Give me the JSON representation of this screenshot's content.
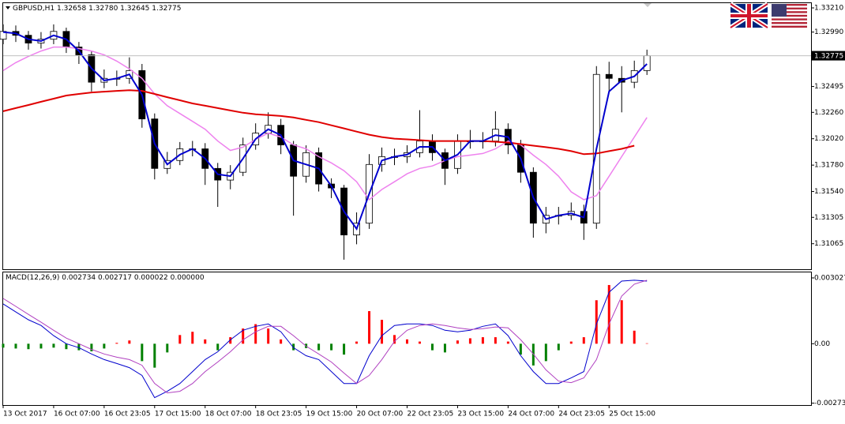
{
  "chart_data": [
    {
      "type": "candlestick",
      "title": "GBPUSD,H1  1.32658 1.32780 1.32645 1.32775",
      "x": [
        0,
        4,
        8,
        12,
        16,
        20,
        24,
        28,
        32,
        36,
        40,
        44,
        48,
        52,
        56,
        60,
        64,
        68,
        72,
        76,
        80,
        84,
        88,
        92,
        96,
        100,
        104,
        108,
        112,
        116,
        120,
        124,
        128,
        132,
        136,
        140,
        144,
        148,
        152,
        156,
        160,
        164,
        168,
        172,
        176,
        180,
        184,
        188,
        192,
        196,
        200,
        204
      ],
      "open": [
        1.32925,
        1.32996,
        1.32961,
        1.3289,
        1.32925,
        1.32996,
        1.32854,
        1.32783,
        1.32534,
        1.32569,
        1.32569,
        1.3264,
        1.322,
        1.3175,
        1.31822,
        1.31928,
        1.31928,
        1.3175,
        1.31644,
        1.31715,
        1.31964,
        1.32071,
        1.32142,
        1.31964,
        1.31679,
        1.31893,
        1.31608,
        1.31572,
        1.31145,
        1.31252,
        1.31786,
        1.31857,
        1.31857,
        1.31893,
        1.31999,
        1.31893,
        1.3175,
        1.31999,
        1.31999,
        1.31999,
        1.32106,
        1.31964,
        1.31715,
        1.31252,
        1.31323,
        1.31323,
        1.31359,
        1.31252,
        1.32605,
        1.32569,
        1.32534,
        1.3264
      ],
      "high": [
        1.3306,
        1.3305,
        1.33,
        1.3299,
        1.3306,
        1.3303,
        1.329,
        1.3282,
        1.3265,
        1.3264,
        1.3276,
        1.327,
        1.3225,
        1.319,
        1.3199,
        1.32,
        1.3198,
        1.318,
        1.3178,
        1.3203,
        1.3216,
        1.3226,
        1.322,
        1.32,
        1.3196,
        1.3194,
        1.3166,
        1.316,
        1.3135,
        1.3188,
        1.3194,
        1.3193,
        1.3196,
        1.3228,
        1.3206,
        1.3193,
        1.3206,
        1.321,
        1.3208,
        1.3227,
        1.3216,
        1.3201,
        1.3176,
        1.314,
        1.314,
        1.3144,
        1.3142,
        1.3268,
        1.3272,
        1.3268,
        1.3273,
        1.3283
      ],
      "low": [
        1.3288,
        1.329,
        1.3283,
        1.3284,
        1.3288,
        1.328,
        1.327,
        1.3245,
        1.3248,
        1.325,
        1.3252,
        1.3212,
        1.3165,
        1.317,
        1.3178,
        1.3186,
        1.316,
        1.314,
        1.3156,
        1.3168,
        1.3192,
        1.3202,
        1.3188,
        1.3132,
        1.3162,
        1.3154,
        1.3148,
        1.3092,
        1.3106,
        1.312,
        1.3172,
        1.3178,
        1.318,
        1.3185,
        1.3182,
        1.316,
        1.317,
        1.3193,
        1.3193,
        1.3195,
        1.3188,
        1.3162,
        1.3112,
        1.3116,
        1.3124,
        1.3128,
        1.311,
        1.312,
        1.3244,
        1.3226,
        1.3248,
        1.326
      ],
      "close": [
        1.32996,
        1.32961,
        1.3289,
        1.32925,
        1.32996,
        1.32854,
        1.32783,
        1.32534,
        1.32569,
        1.32569,
        1.3264,
        1.322,
        1.3175,
        1.31822,
        1.31928,
        1.31928,
        1.3175,
        1.31644,
        1.31715,
        1.31964,
        1.32071,
        1.32142,
        1.31964,
        1.31679,
        1.31893,
        1.31608,
        1.31572,
        1.31145,
        1.31252,
        1.31786,
        1.31857,
        1.31857,
        1.31893,
        1.31999,
        1.31893,
        1.3175,
        1.31999,
        1.31999,
        1.31999,
        1.32106,
        1.31964,
        1.31715,
        1.31252,
        1.31323,
        1.31323,
        1.31359,
        1.31252,
        1.32605,
        1.32569,
        1.32534,
        1.3264,
        1.32775
      ],
      "up_color": "#ffffff",
      "down_color": "#000000",
      "series": [
        {
          "color": "#ee82ee",
          "width": 1.5,
          "values": [
            1.3264,
            1.32712,
            1.32769,
            1.32818,
            1.32854,
            1.32854,
            1.3284,
            1.32818,
            1.32783,
            1.32726,
            1.32655,
            1.32569,
            1.32427,
            1.3232,
            1.32249,
            1.32178,
            1.32106,
            1.31999,
            1.31914,
            1.31943,
            1.32014,
            1.32071,
            1.32035,
            1.31964,
            1.31928,
            1.31857,
            1.318,
            1.31729,
            1.31629,
            1.31466,
            1.31558,
            1.31629,
            1.31701,
            1.3175,
            1.31772,
            1.31822,
            1.31857,
            1.31871,
            1.31886,
            1.31928,
            1.31999,
            1.31964,
            1.31871,
            1.31786,
            1.31679,
            1.31537,
            1.31466,
            1.31502,
            1.31679,
            1.31857,
            1.32035,
            1.32213
          ]
        },
        {
          "color": "#e00000",
          "width": 2,
          "values": [
            1.3227,
            1.32299,
            1.32327,
            1.32356,
            1.32384,
            1.32413,
            1.32427,
            1.32441,
            1.32448,
            1.32455,
            1.32462,
            1.32455,
            1.32427,
            1.32398,
            1.3237,
            1.32341,
            1.3232,
            1.32299,
            1.32277,
            1.32256,
            1.32242,
            1.32235,
            1.32227,
            1.32213,
            1.32192,
            1.32171,
            1.32142,
            1.32114,
            1.32085,
            1.32057,
            1.32035,
            1.32021,
            1.32014,
            1.32007,
            1.31999,
            1.31999,
            1.31999,
            1.31999,
            1.31999,
            1.31993,
            1.31985,
            1.31971,
            1.31957,
            1.31943,
            1.31928,
            1.31907,
            1.31879,
            1.31886,
            1.31907,
            1.31928,
            1.31957,
            null
          ]
        },
        {
          "color": "#0000cd",
          "width": 2,
          "values": [
            1.3299,
            1.32978,
            1.32925,
            1.32908,
            1.3296,
            1.32925,
            1.32818,
            1.3266,
            1.3255,
            1.32569,
            1.32605,
            1.3242,
            1.31975,
            1.31786,
            1.31875,
            1.31928,
            1.3184,
            1.31697,
            1.3168,
            1.3184,
            1.32018,
            1.32106,
            1.32053,
            1.31822,
            1.31786,
            1.3175,
            1.3159,
            1.31358,
            1.312,
            1.31519,
            1.31822,
            1.31857,
            1.31875,
            1.31946,
            1.31946,
            1.31822,
            1.31875,
            1.31999,
            1.31999,
            1.32053,
            1.32035,
            1.3184,
            1.31484,
            1.31288,
            1.31323,
            1.31341,
            1.31305,
            1.31929,
            1.3245,
            1.3255,
            1.32587,
            1.327
          ]
        }
      ],
      "last_price": 1.32775,
      "xlim": [
        0,
        256
      ],
      "ylim": [
        1.30833,
        1.33253
      ],
      "yticks": [
        {
          "value": 1.3321,
          "label": "1.33210"
        },
        {
          "value": 1.3299,
          "label": "1.32990"
        },
        1.32495,
        {
          "value": 1.3226,
          "label": "1.32260"
        },
        {
          "value": 1.3202,
          "label": "1.32020"
        },
        {
          "value": 1.3178,
          "label": "1.31780"
        },
        {
          "value": 1.3154,
          "label": "1.31540"
        },
        1.31305,
        1.31065
      ]
    },
    {
      "type": "macd",
      "title": "MACD(12,26,9) 0.002734 0.002717 0.000022 0.000000",
      "x": [
        0,
        4,
        8,
        12,
        16,
        20,
        24,
        28,
        32,
        36,
        40,
        44,
        48,
        52,
        56,
        60,
        64,
        68,
        72,
        76,
        80,
        84,
        88,
        92,
        96,
        100,
        104,
        108,
        112,
        116,
        120,
        124,
        128,
        132,
        136,
        140,
        144,
        148,
        152,
        156,
        160,
        164,
        168,
        172,
        176,
        180,
        184,
        188,
        192,
        196,
        200,
        204
      ],
      "histogram": [
        -0.00018,
        -0.00022,
        -0.00025,
        -0.00022,
        -0.00018,
        -0.00025,
        -0.0003,
        -0.00035,
        -0.00022,
        4e-05,
        0.00015,
        -0.0008,
        -0.0011,
        -0.0004,
        0.0004,
        0.00055,
        0.0002,
        -0.0003,
        0.0003,
        0.0007,
        0.0009,
        0.0007,
        0.0002,
        -0.0003,
        -0.0002,
        -0.0003,
        -0.0003,
        -0.0005,
        0.0001,
        0.0015,
        0.0011,
        0.0004,
        0.0002,
        0.0001,
        -0.0003,
        -0.0004,
        0.00015,
        0.00025,
        0.0003,
        0.0003,
        0.0001,
        -0.0005,
        -0.001,
        -0.0008,
        -0.0003,
        0.0001,
        0.0003,
        0.002,
        0.0027,
        0.002,
        0.0006,
        2e-05
      ],
      "positive_color": "#ff0000",
      "negative_color": "#008000",
      "series": [
        {
          "color": "#0000cd",
          "width": 1,
          "values": [
            0.00183,
            0.00146,
            0.0011,
            0.00084,
            0.00037,
            0,
            -0.00018,
            -0.00047,
            -0.00073,
            -0.00091,
            -0.0011,
            -0.00146,
            -0.00248,
            -0.00219,
            -0.00183,
            -0.00128,
            -0.00073,
            -0.00037,
            0.00018,
            0.00062,
            0.0008,
            0.00091,
            0.00055,
            -0.00018,
            -0.00055,
            -0.00073,
            -0.00128,
            -0.00183,
            -0.00183,
            -0.00055,
            0.00037,
            0.00084,
            0.00091,
            0.00091,
            0.00084,
            0.00062,
            0.00055,
            0.00062,
            0.0008,
            0.00091,
            0.00037,
            -0.00055,
            -0.00128,
            -0.00183,
            -0.00183,
            -0.00157,
            -0.00128,
            0.00091,
            0.00237,
            0.00288,
            0.00292,
            0.00288
          ]
        },
        {
          "color": "#b040c0",
          "width": 1,
          "values": [
            0.00208,
            0.00172,
            0.00135,
            0.00099,
            0.00062,
            0.00026,
            0,
            -0.00026,
            -0.00047,
            -0.00062,
            -0.00073,
            -0.00099,
            -0.00183,
            -0.00226,
            -0.00219,
            -0.00183,
            -0.00128,
            -0.00084,
            -0.00037,
            0.00018,
            0.00055,
            0.0008,
            0.0008,
            0.00037,
            -0.00011,
            -0.00047,
            -0.00084,
            -0.00135,
            -0.00183,
            -0.00146,
            -0.00073,
            0.00011,
            0.00062,
            0.00084,
            0.00091,
            0.00084,
            0.00073,
            0.00066,
            0.00069,
            0.00077,
            0.00073,
            0.00018,
            -0.00047,
            -0.0012,
            -0.00172,
            -0.00179,
            -0.00157,
            -0.00073,
            0.00091,
            0.00219,
            0.00274,
            0.00292
          ]
        }
      ],
      "xlim": [
        0,
        256
      ],
      "ylim": [
        -0.00282,
        0.00328
      ],
      "yticks": [
        0.003027,
        {
          "value": 0,
          "label": "0.00"
        },
        -0.002733
      ],
      "xticks": [
        {
          "value": 0,
          "label": "13 Oct 2017"
        },
        {
          "value": 16,
          "label": "16 Oct 07:00"
        },
        {
          "value": 32,
          "label": "16 Oct 23:05"
        },
        {
          "value": 48,
          "label": "17 Oct 15:00"
        },
        {
          "value": 64,
          "label": "18 Oct 07:00"
        },
        {
          "value": 80,
          "label": "18 Oct 23:05"
        },
        {
          "value": 96,
          "label": "19 Oct 15:00"
        },
        {
          "value": 112,
          "label": "20 Oct 07:00"
        },
        {
          "value": 128,
          "label": "22 Oct 23:05"
        },
        {
          "value": 144,
          "label": "23 Oct 15:00"
        },
        {
          "value": 160,
          "label": "24 Oct 07:00"
        },
        {
          "value": 176,
          "label": "24 Oct 23:05"
        },
        {
          "value": 192,
          "label": "25 Oct 15:00"
        }
      ]
    }
  ]
}
